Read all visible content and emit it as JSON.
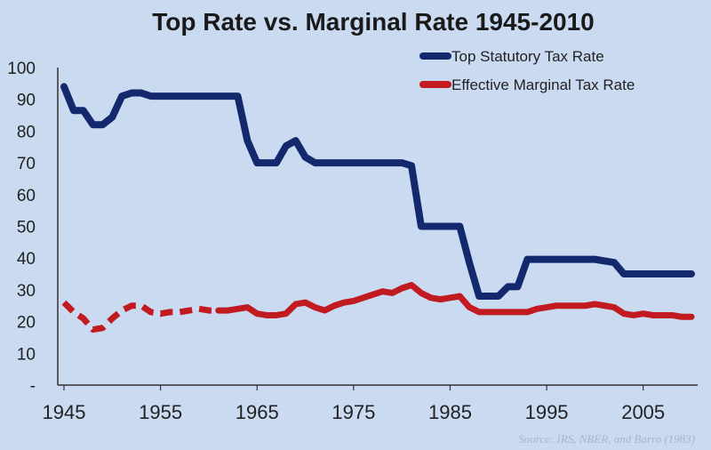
{
  "chart_data": {
    "type": "line",
    "title": "Top Rate vs. Marginal Rate 1945-2010",
    "xlabel": "",
    "ylabel": "",
    "xlim": [
      1945,
      2010
    ],
    "ylim": [
      0,
      100
    ],
    "x_ticks": [
      {
        "value": 1945,
        "label": "1945"
      },
      {
        "value": 1955,
        "label": "1955"
      },
      {
        "value": 1965,
        "label": "1965"
      },
      {
        "value": 1975,
        "label": "1975"
      },
      {
        "value": 1985,
        "label": "1985"
      },
      {
        "value": 1995,
        "label": "1995"
      },
      {
        "value": 2005,
        "label": "2005"
      }
    ],
    "y_ticks": [
      {
        "value": 0,
        "label": "-"
      },
      {
        "value": 10,
        "label": "10"
      },
      {
        "value": 20,
        "label": "20"
      },
      {
        "value": 30,
        "label": "30"
      },
      {
        "value": 40,
        "label": "40"
      },
      {
        "value": 50,
        "label": "50"
      },
      {
        "value": 60,
        "label": "60"
      },
      {
        "value": 70,
        "label": "70"
      },
      {
        "value": 80,
        "label": "80"
      },
      {
        "value": 90,
        "label": "90"
      },
      {
        "value": 100,
        "label": "100"
      }
    ],
    "legend_position": "top-right",
    "series": [
      {
        "name": "Top Statutory Tax Rate",
        "color": "#14286e",
        "dashed_until": null,
        "points": [
          [
            1945,
            94
          ],
          [
            1946,
            86.5
          ],
          [
            1947,
            86.5
          ],
          [
            1948,
            82
          ],
          [
            1949,
            82
          ],
          [
            1950,
            84.4
          ],
          [
            1951,
            91
          ],
          [
            1952,
            92
          ],
          [
            1953,
            92
          ],
          [
            1954,
            91
          ],
          [
            1955,
            91
          ],
          [
            1963,
            91
          ],
          [
            1964,
            77
          ],
          [
            1965,
            70
          ],
          [
            1966,
            70
          ],
          [
            1967,
            70
          ],
          [
            1968,
            75.3
          ],
          [
            1969,
            77
          ],
          [
            1970,
            71.8
          ],
          [
            1971,
            70
          ],
          [
            1980,
            70
          ],
          [
            1981,
            69.1
          ],
          [
            1982,
            50
          ],
          [
            1986,
            50
          ],
          [
            1987,
            38.5
          ],
          [
            1988,
            28
          ],
          [
            1990,
            28
          ],
          [
            1991,
            31
          ],
          [
            1992,
            31
          ],
          [
            1993,
            39.6
          ],
          [
            2000,
            39.6
          ],
          [
            2001,
            39.1
          ],
          [
            2002,
            38.6
          ],
          [
            2003,
            35
          ],
          [
            2010,
            35
          ]
        ]
      },
      {
        "name": "Effective Marginal Tax Rate",
        "color": "#c11a20",
        "dashed_until": 1961,
        "points": [
          [
            1945,
            26
          ],
          [
            1946,
            23
          ],
          [
            1947,
            21
          ],
          [
            1948,
            17.5
          ],
          [
            1949,
            18
          ],
          [
            1950,
            21
          ],
          [
            1951,
            23.5
          ],
          [
            1952,
            25
          ],
          [
            1953,
            25
          ],
          [
            1954,
            23
          ],
          [
            1955,
            22.5
          ],
          [
            1956,
            23
          ],
          [
            1957,
            23
          ],
          [
            1958,
            23.5
          ],
          [
            1959,
            24
          ],
          [
            1960,
            23.5
          ],
          [
            1961,
            23.5
          ],
          [
            1962,
            23.5
          ],
          [
            1963,
            24
          ],
          [
            1964,
            24.5
          ],
          [
            1965,
            22.5
          ],
          [
            1966,
            22
          ],
          [
            1967,
            22
          ],
          [
            1968,
            22.5
          ],
          [
            1969,
            25.5
          ],
          [
            1970,
            26
          ],
          [
            1971,
            24.5
          ],
          [
            1972,
            23.5
          ],
          [
            1973,
            25
          ],
          [
            1974,
            26
          ],
          [
            1975,
            26.5
          ],
          [
            1976,
            27.5
          ],
          [
            1977,
            28.5
          ],
          [
            1978,
            29.5
          ],
          [
            1979,
            29
          ],
          [
            1980,
            30.5
          ],
          [
            1981,
            31.5
          ],
          [
            1982,
            29
          ],
          [
            1983,
            27.5
          ],
          [
            1984,
            27
          ],
          [
            1985,
            27.5
          ],
          [
            1986,
            28
          ],
          [
            1987,
            24.5
          ],
          [
            1988,
            23
          ],
          [
            1989,
            23
          ],
          [
            1990,
            23
          ],
          [
            1991,
            23
          ],
          [
            1992,
            23
          ],
          [
            1993,
            23
          ],
          [
            1994,
            24
          ],
          [
            1995,
            24.5
          ],
          [
            1996,
            25
          ],
          [
            1997,
            25
          ],
          [
            1998,
            25
          ],
          [
            1999,
            25
          ],
          [
            2000,
            25.5
          ],
          [
            2001,
            25
          ],
          [
            2002,
            24.5
          ],
          [
            2003,
            22.5
          ],
          [
            2004,
            22
          ],
          [
            2005,
            22.5
          ],
          [
            2006,
            22
          ],
          [
            2007,
            22
          ],
          [
            2008,
            22
          ],
          [
            2009,
            21.5
          ],
          [
            2010,
            21.5
          ]
        ]
      }
    ],
    "source": "Source: IRS, NBER, and Barro (1983)"
  }
}
